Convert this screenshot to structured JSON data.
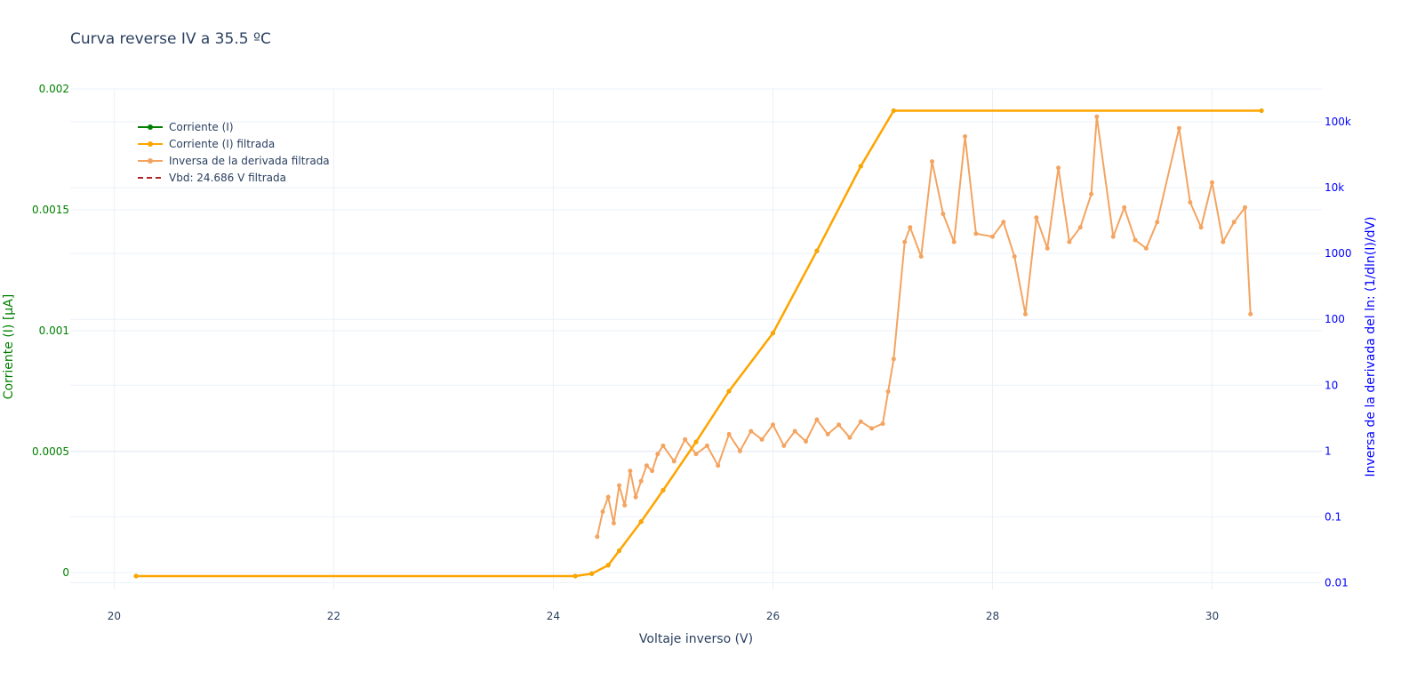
{
  "chart_data": {
    "type": "line",
    "title": "Curva reverse IV a 35.5 ºC",
    "xlabel": "Voltaje inverso (V)",
    "ylabel": "Corriente (I) [µA]",
    "y2label": "Inversa de la derivada del ln: (1/dln(I)/dV)",
    "xlim": [
      19.6,
      31.0
    ],
    "ylim": [
      -7e-05,
      0.002
    ],
    "y2lim_log": [
      0.0079,
      316228
    ],
    "x_ticks": [
      "20",
      "22",
      "24",
      "26",
      "28",
      "30"
    ],
    "y_ticks": [
      "0",
      "0.0005",
      "0.001",
      "0.0015",
      "0.002"
    ],
    "y2_ticks": [
      "0.01",
      "0.1",
      "1",
      "10",
      "100",
      "1000",
      "10k",
      "100k"
    ],
    "grid": true,
    "legend_position": "top-left",
    "series": [
      {
        "name": "Corriente (I)",
        "axis": "y",
        "color": "#008000",
        "style": "line+markers",
        "x": [
          20.2,
          24.2,
          24.35,
          24.5,
          24.6,
          24.8,
          25.0,
          25.3,
          25.6,
          26.0,
          26.4,
          26.8,
          27.1,
          30.45
        ],
        "y": [
          -1.5e-05,
          -1.5e-05,
          -5e-06,
          3e-05,
          9e-05,
          0.00021,
          0.00034,
          0.00054,
          0.00075,
          0.00099,
          0.00133,
          0.00168,
          0.00191,
          0.00191
        ]
      },
      {
        "name": "Corriente (I) filtrada",
        "axis": "y",
        "color": "#ffa500",
        "style": "line+markers",
        "x": [
          20.2,
          24.2,
          24.35,
          24.5,
          24.6,
          24.8,
          25.0,
          25.3,
          25.6,
          26.0,
          26.4,
          26.8,
          27.1,
          30.45
        ],
        "y": [
          -1.5e-05,
          -1.5e-05,
          -5e-06,
          3e-05,
          9e-05,
          0.00021,
          0.00034,
          0.00054,
          0.00075,
          0.00099,
          0.00133,
          0.00168,
          0.00191,
          0.00191
        ]
      },
      {
        "name": "Inversa de la derivada filtrada",
        "axis": "y2",
        "color": "#f4a460",
        "style": "line+markers",
        "x": [
          24.4,
          24.45,
          24.5,
          24.55,
          24.6,
          24.65,
          24.7,
          24.75,
          24.8,
          24.85,
          24.9,
          24.95,
          25.0,
          25.1,
          25.2,
          25.3,
          25.4,
          25.5,
          25.6,
          25.7,
          25.8,
          25.9,
          26.0,
          26.1,
          26.2,
          26.3,
          26.4,
          26.5,
          26.6,
          26.7,
          26.8,
          26.9,
          27.0,
          27.05,
          27.1,
          27.2,
          27.25,
          27.35,
          27.45,
          27.55,
          27.65,
          27.75,
          27.85,
          28.0,
          28.1,
          28.2,
          28.3,
          28.4,
          28.5,
          28.6,
          28.7,
          28.8,
          28.9,
          28.95,
          29.1,
          29.2,
          29.3,
          29.4,
          29.5,
          29.7,
          29.8,
          29.9,
          30.0,
          30.1,
          30.2,
          30.3,
          30.35
        ],
        "y": [
          0.05,
          0.12,
          0.2,
          0.08,
          0.3,
          0.15,
          0.5,
          0.2,
          0.35,
          0.6,
          0.5,
          0.9,
          1.2,
          0.7,
          1.5,
          0.9,
          1.2,
          0.6,
          1.8,
          1.0,
          2.0,
          1.5,
          2.5,
          1.2,
          2.0,
          1.4,
          3.0,
          1.8,
          2.5,
          1.6,
          2.8,
          2.2,
          2.6,
          8.0,
          25.0,
          1500,
          2500,
          900,
          25000,
          4000,
          1500,
          60000,
          2000,
          1800,
          3000,
          900,
          120,
          3500,
          1200,
          20000,
          1500,
          2500,
          8000,
          120000,
          1800,
          5000,
          1600,
          1200,
          3000,
          80000,
          6000,
          2500,
          12000,
          1500,
          3000,
          5000,
          120
        ]
      }
    ],
    "vbd_series": {
      "name": "Vbd: 24.686 V filtrada",
      "color": "#b22222",
      "style": "dash"
    }
  }
}
